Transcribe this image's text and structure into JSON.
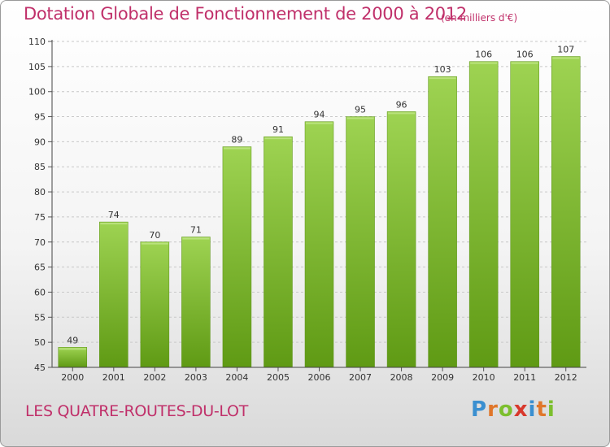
{
  "chart_data": {
    "type": "bar",
    "title": "Dotation Globale de Fonctionnement de 2000 à 2012",
    "unit": "(en milliers d'€)",
    "categories": [
      "2000",
      "2001",
      "2002",
      "2003",
      "2004",
      "2005",
      "2006",
      "2007",
      "2008",
      "2009",
      "2010",
      "2011",
      "2012"
    ],
    "values": [
      49,
      74,
      70,
      71,
      89,
      91,
      94,
      95,
      96,
      103,
      106,
      106,
      107
    ],
    "ylim": [
      45,
      110
    ],
    "yticks": [
      45,
      50,
      55,
      60,
      65,
      70,
      75,
      80,
      85,
      90,
      95,
      100,
      105,
      110
    ],
    "grid": true,
    "bar_color": "#7cbf2e",
    "commune": "LES QUATRE-ROUTES-DU-LOT",
    "logo": "Proxiti"
  }
}
